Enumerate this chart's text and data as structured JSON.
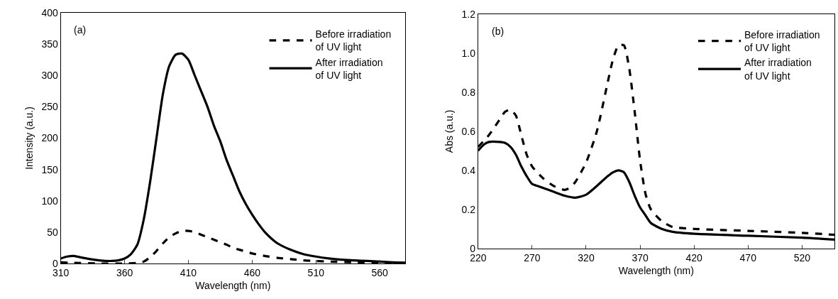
{
  "chart_data": [
    {
      "type": "line",
      "xlabel": "Wavelength (nm)",
      "ylabel": "Intensity (a.u.)",
      "annotations": [
        "(a)"
      ],
      "xlim": [
        310,
        580
      ],
      "xticks": [
        310,
        360,
        410,
        460,
        510,
        560
      ],
      "ylim": [
        0,
        400
      ],
      "yticks": [
        0,
        50,
        100,
        150,
        200,
        250,
        300,
        350,
        400
      ],
      "legend": "top right",
      "series": [
        {
          "name": "Before irradiation\nof UV light",
          "color": "#000000",
          "line_style": "dashed",
          "x": [
            310,
            320,
            340,
            360,
            370,
            375,
            380,
            385,
            390,
            395,
            400,
            405,
            410,
            415,
            420,
            425,
            430,
            435,
            440,
            445,
            450,
            455,
            460,
            470,
            480,
            490,
            500,
            510,
            520,
            540,
            560,
            580
          ],
          "values": [
            2,
            1,
            0,
            0,
            1,
            3,
            10,
            20,
            32,
            42,
            48,
            52,
            52,
            50,
            46,
            42,
            38,
            34,
            30,
            25,
            22,
            19,
            16,
            12,
            9,
            7,
            5,
            4,
            3,
            2,
            1,
            1
          ]
        },
        {
          "name": "After irradiation\nof UV light",
          "color": "#000000",
          "line_style": "solid",
          "x": [
            310,
            315,
            320,
            325,
            330,
            340,
            350,
            355,
            360,
            365,
            370,
            375,
            380,
            385,
            390,
            395,
            400,
            405,
            410,
            415,
            420,
            425,
            430,
            435,
            440,
            445,
            450,
            455,
            460,
            465,
            470,
            475,
            480,
            490,
            500,
            510,
            520,
            530,
            540,
            550,
            560,
            570,
            580
          ],
          "values": [
            8,
            11,
            12,
            10,
            8,
            5,
            4,
            5,
            8,
            15,
            30,
            70,
            130,
            200,
            270,
            315,
            333,
            335,
            325,
            300,
            275,
            250,
            220,
            195,
            165,
            140,
            115,
            95,
            78,
            63,
            50,
            40,
            32,
            22,
            15,
            11,
            8,
            6,
            5,
            4,
            3,
            2,
            1
          ]
        }
      ]
    },
    {
      "type": "line",
      "xlabel": "Wavelength (nm)",
      "ylabel": "Abs (a.u.)",
      "annotations": [
        "(b)"
      ],
      "xlim": [
        220,
        550
      ],
      "xticks": [
        220,
        270,
        320,
        370,
        420,
        470,
        520
      ],
      "ylim": [
        0,
        1.2
      ],
      "yticks": [
        0,
        {
          "value": 0.2,
          "label": "0.2"
        },
        {
          "value": 0.4,
          "label": "0.4"
        },
        {
          "value": 0.6,
          "label": "0.6"
        },
        {
          "value": 0.8,
          "label": "0.8"
        },
        {
          "value": 1,
          "label": "1.0"
        },
        {
          "value": 1.2,
          "label": "1.2"
        }
      ],
      "legend": "top right",
      "series": [
        {
          "name": "Before irradiation\nof UV light",
          "color": "#000000",
          "line_style": "dashed",
          "x": [
            220,
            230,
            240,
            245,
            250,
            255,
            260,
            265,
            270,
            280,
            290,
            300,
            305,
            310,
            320,
            330,
            340,
            345,
            350,
            355,
            360,
            365,
            370,
            375,
            380,
            390,
            400,
            420,
            470,
            520,
            550
          ],
          "values": [
            0.52,
            0.58,
            0.66,
            0.7,
            0.71,
            0.68,
            0.58,
            0.48,
            0.42,
            0.36,
            0.32,
            0.3,
            0.31,
            0.34,
            0.44,
            0.6,
            0.85,
            0.97,
            1.04,
            1.04,
            0.92,
            0.7,
            0.45,
            0.28,
            0.2,
            0.14,
            0.11,
            0.1,
            0.09,
            0.08,
            0.07
          ]
        },
        {
          "name": "After irradiation\nof UV light",
          "color": "#000000",
          "line_style": "solid",
          "x": [
            220,
            225,
            230,
            240,
            245,
            250,
            255,
            260,
            265,
            270,
            275,
            280,
            290,
            300,
            310,
            320,
            330,
            340,
            345,
            350,
            355,
            360,
            365,
            370,
            375,
            380,
            390,
            400,
            420,
            470,
            520,
            550
          ],
          "values": [
            0.5,
            0.53,
            0.545,
            0.545,
            0.54,
            0.52,
            0.48,
            0.42,
            0.37,
            0.33,
            0.32,
            0.31,
            0.29,
            0.27,
            0.26,
            0.275,
            0.32,
            0.37,
            0.39,
            0.4,
            0.39,
            0.34,
            0.27,
            0.21,
            0.17,
            0.13,
            0.1,
            0.085,
            0.075,
            0.065,
            0.055,
            0.045
          ]
        }
      ]
    }
  ]
}
